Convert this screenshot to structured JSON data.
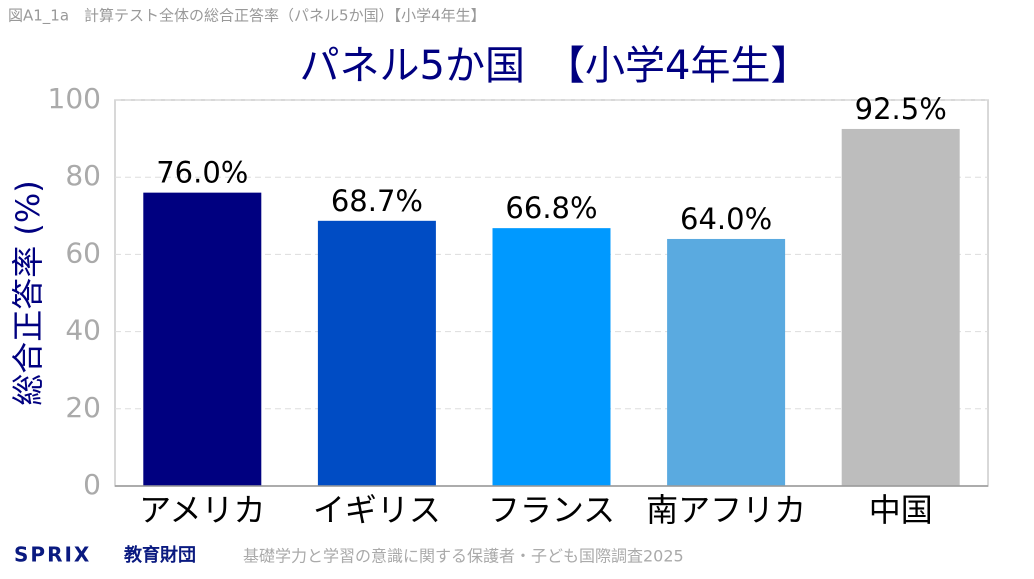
{
  "chart_data": {
    "type": "bar",
    "header": "図A1_1a　計算テスト全体の総合正答率（パネル5か国）【小学4年生】",
    "title": "パネル5か国　【小学4年生】",
    "ylabel": "総合正答率 (%)",
    "categories": [
      "アメリカ",
      "イギリス",
      "フランス",
      "南アフリカ",
      "中国"
    ],
    "values": [
      76.0,
      68.7,
      66.8,
      64.0,
      92.5
    ],
    "value_labels": [
      "76.0%",
      "68.7%",
      "66.8%",
      "64.0%",
      "92.5%"
    ],
    "colors": [
      "#000080",
      "#004cc4",
      "#0099ff",
      "#5aaae0",
      "#bdbdbd"
    ],
    "ylim": [
      0,
      100
    ],
    "yticks": [
      0,
      20,
      40,
      60,
      80,
      100
    ],
    "grid": true,
    "logo_name": "SPRIX",
    "logo_sub": "教育財団",
    "source": "基礎学力と学習の意識に関する保護者・子ども国際調査2025"
  }
}
